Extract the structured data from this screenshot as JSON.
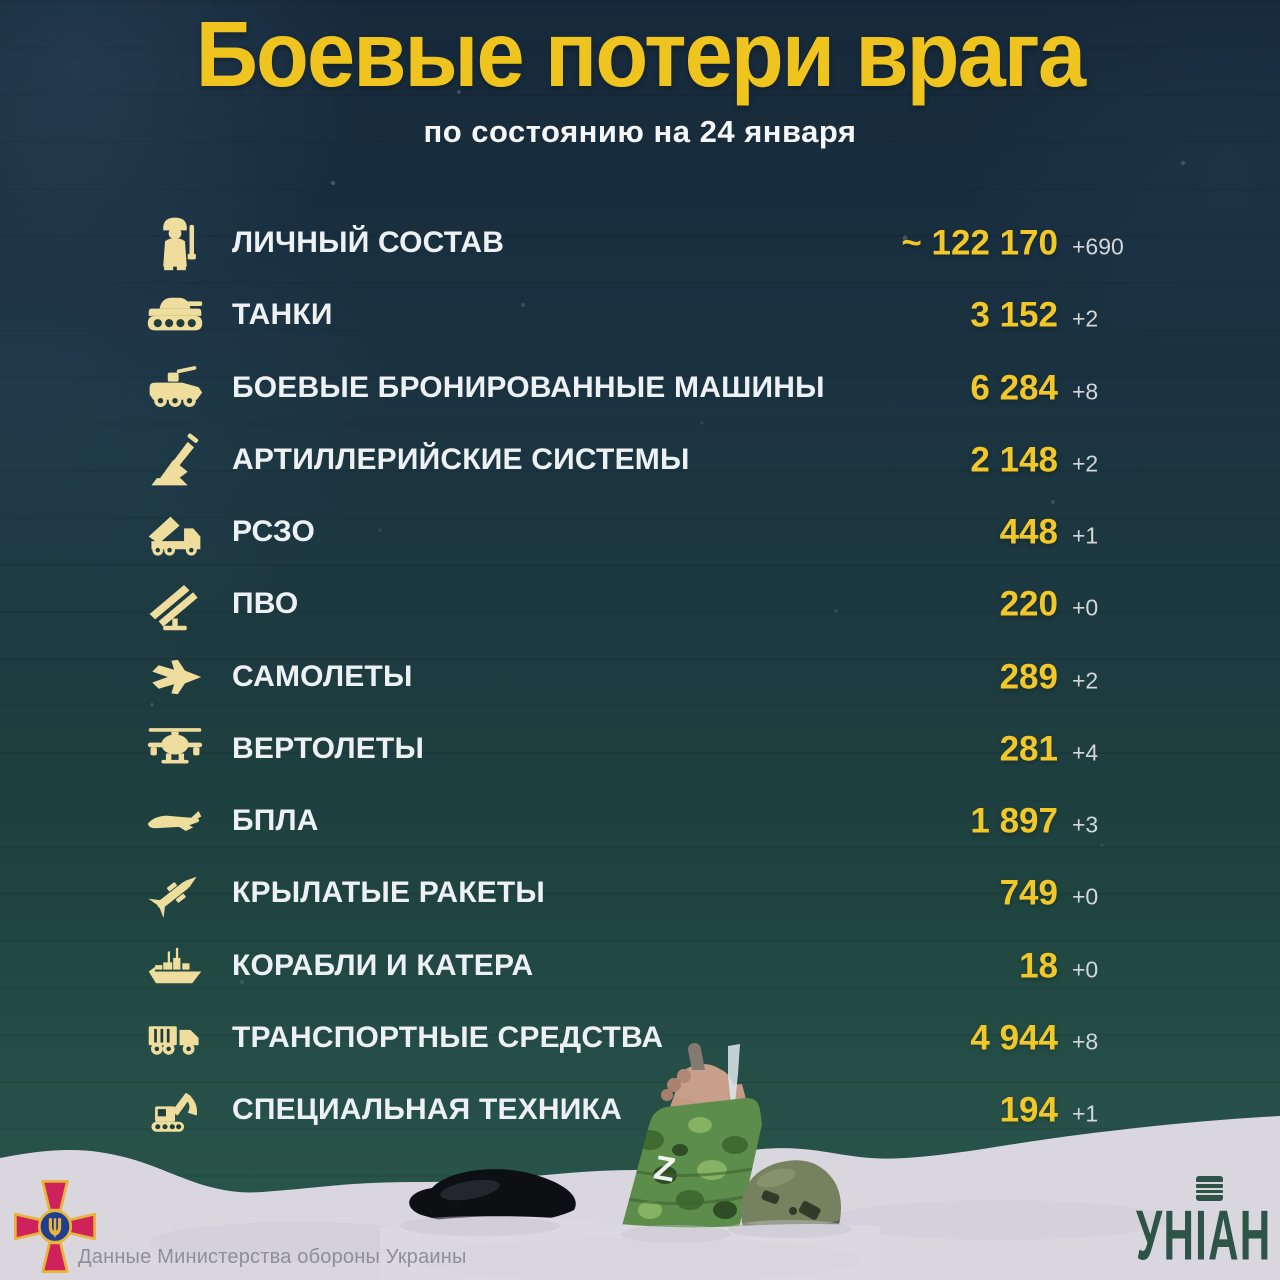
{
  "header": {
    "title": "Боевые потери врага",
    "subtitle": "по состоянию на 24 января"
  },
  "rows": [
    {
      "icon": "personnel-icon",
      "label": "ЛИЧНЫЙ СОСТАВ",
      "value": "~ 122 170",
      "delta": "+690"
    },
    {
      "icon": "tanks-icon",
      "label": "ТАНКИ",
      "value": "3 152",
      "delta": "+2"
    },
    {
      "icon": "armored-vehicles-icon",
      "label": "БОЕВЫЕ БРОНИРОВАННЫЕ МАШИНЫ",
      "value": "6 284",
      "delta": "+8"
    },
    {
      "icon": "artillery-icon",
      "label": "АРТИЛЛЕРИЙСКИЕ СИСТЕМЫ",
      "value": "2 148",
      "delta": "+2"
    },
    {
      "icon": "mlrs-icon",
      "label": "РСЗО",
      "value": "448",
      "delta": "+1"
    },
    {
      "icon": "air-defense-icon",
      "label": "ПВО",
      "value": "220",
      "delta": "+0"
    },
    {
      "icon": "aircraft-icon",
      "label": "САМОЛЕТЫ",
      "value": "289",
      "delta": "+2"
    },
    {
      "icon": "helicopters-icon",
      "label": "ВЕРТОЛЕТЫ",
      "value": "281",
      "delta": "+4"
    },
    {
      "icon": "uav-icon",
      "label": "БПЛА",
      "value": "1 897",
      "delta": "+3"
    },
    {
      "icon": "cruise-missiles-icon",
      "label": "КРЫЛАТЫЕ РАКЕТЫ",
      "value": "749",
      "delta": "+0"
    },
    {
      "icon": "ships-icon",
      "label": "КОРАБЛИ И КАТЕРА",
      "value": "18",
      "delta": "+0"
    },
    {
      "icon": "vehicles-icon",
      "label": "ТРАНСПОРТНЫЕ СРЕДСТВА",
      "value": "4 944",
      "delta": "+8"
    },
    {
      "icon": "special-equipment-icon",
      "label": "СПЕЦИАЛЬНАЯ ТЕХНИКА",
      "value": "194",
      "delta": "+1"
    }
  ],
  "scene": {
    "z_marking": "Z"
  },
  "footer": {
    "source": "Данные Министерства обороны Украины",
    "brand": "УНІАН"
  },
  "colors": {
    "accent_yellow": "#f0c41f",
    "value_yellow": "#f2c728",
    "icon_cream": "#efdd9e",
    "background_top": "#16293a",
    "background_bottom": "#2b574b",
    "snow": "#d9d6dd",
    "brand_green": "#2e5347",
    "emblem_crimson": "#cf215c",
    "emblem_gold": "#e8b43c",
    "emblem_blue": "#1f3e8f"
  },
  "chart_data": {
    "type": "table",
    "title": "Боевые потери врага",
    "subtitle": "по состоянию на 24 января",
    "categories": [
      "ЛИЧНЫЙ СОСТАВ",
      "ТАНКИ",
      "БОЕВЫЕ БРОНИРОВАННЫЕ МАШИНЫ",
      "АРТИЛЛЕРИЙСКИЕ СИСТЕМЫ",
      "РСЗО",
      "ПВО",
      "САМОЛЕТЫ",
      "ВЕРТОЛЕТЫ",
      "БПЛА",
      "КРЫЛАТЫЕ РАКЕТЫ",
      "КОРАБЛИ И КАТЕРА",
      "ТРАНСПОРТНЫЕ СРЕДСТВА",
      "СПЕЦИАЛЬНАЯ ТЕХНИКА"
    ],
    "values": [
      122170,
      3152,
      6284,
      2148,
      448,
      220,
      289,
      281,
      1897,
      749,
      18,
      4944,
      194
    ],
    "daily_change": [
      690,
      2,
      8,
      2,
      1,
      0,
      2,
      4,
      3,
      0,
      0,
      8,
      1
    ],
    "value_display": [
      "~ 122 170",
      "3 152",
      "6 284",
      "2 148",
      "448",
      "220",
      "289",
      "281",
      "1 897",
      "749",
      "18",
      "4 944",
      "194"
    ],
    "notes": "value of ЛИЧНЫЙ СОСТАВ is approximate (~), source: Ministry of Defence of Ukraine"
  }
}
